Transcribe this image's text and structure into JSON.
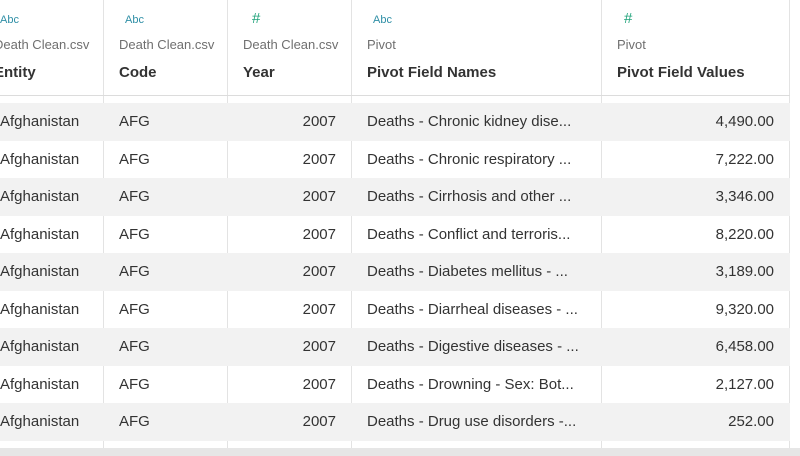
{
  "columns": [
    {
      "type_icon": "Abc",
      "source": "Death Clean.csv",
      "name": "Entity"
    },
    {
      "type_icon": "Abc",
      "source": "Death Clean.csv",
      "name": "Code"
    },
    {
      "type_icon": "#",
      "source": "Death Clean.csv",
      "name": "Year"
    },
    {
      "type_icon": "Abc",
      "source": "Pivot",
      "name": "Pivot Field Names"
    },
    {
      "type_icon": "#",
      "source": "Pivot",
      "name": "Pivot Field Values"
    }
  ],
  "rows": [
    {
      "entity": "Afghanistan",
      "code": "AFG",
      "year": "2007",
      "field": "Deaths - Chronic kidney dise...",
      "value": "4,490.00"
    },
    {
      "entity": "Afghanistan",
      "code": "AFG",
      "year": "2007",
      "field": "Deaths - Chronic respiratory ...",
      "value": "7,222.00"
    },
    {
      "entity": "Afghanistan",
      "code": "AFG",
      "year": "2007",
      "field": "Deaths - Cirrhosis and other ...",
      "value": "3,346.00"
    },
    {
      "entity": "Afghanistan",
      "code": "AFG",
      "year": "2007",
      "field": "Deaths - Conflict and terroris...",
      "value": "8,220.00"
    },
    {
      "entity": "Afghanistan",
      "code": "AFG",
      "year": "2007",
      "field": "Deaths - Diabetes mellitus - ...",
      "value": "3,189.00"
    },
    {
      "entity": "Afghanistan",
      "code": "AFG",
      "year": "2007",
      "field": "Deaths - Diarrheal diseases - ...",
      "value": "9,320.00"
    },
    {
      "entity": "Afghanistan",
      "code": "AFG",
      "year": "2007",
      "field": "Deaths - Digestive diseases - ...",
      "value": "6,458.00"
    },
    {
      "entity": "Afghanistan",
      "code": "AFG",
      "year": "2007",
      "field": "Deaths - Drowning - Sex: Bot...",
      "value": "2,127.00"
    },
    {
      "entity": "Afghanistan",
      "code": "AFG",
      "year": "2007",
      "field": "Deaths - Drug use disorders -...",
      "value": "252.00"
    }
  ],
  "colors": {
    "text_icon": "#2f8fa6",
    "number_icon": "#1fa37a",
    "stripe": "#f2f2f2"
  }
}
